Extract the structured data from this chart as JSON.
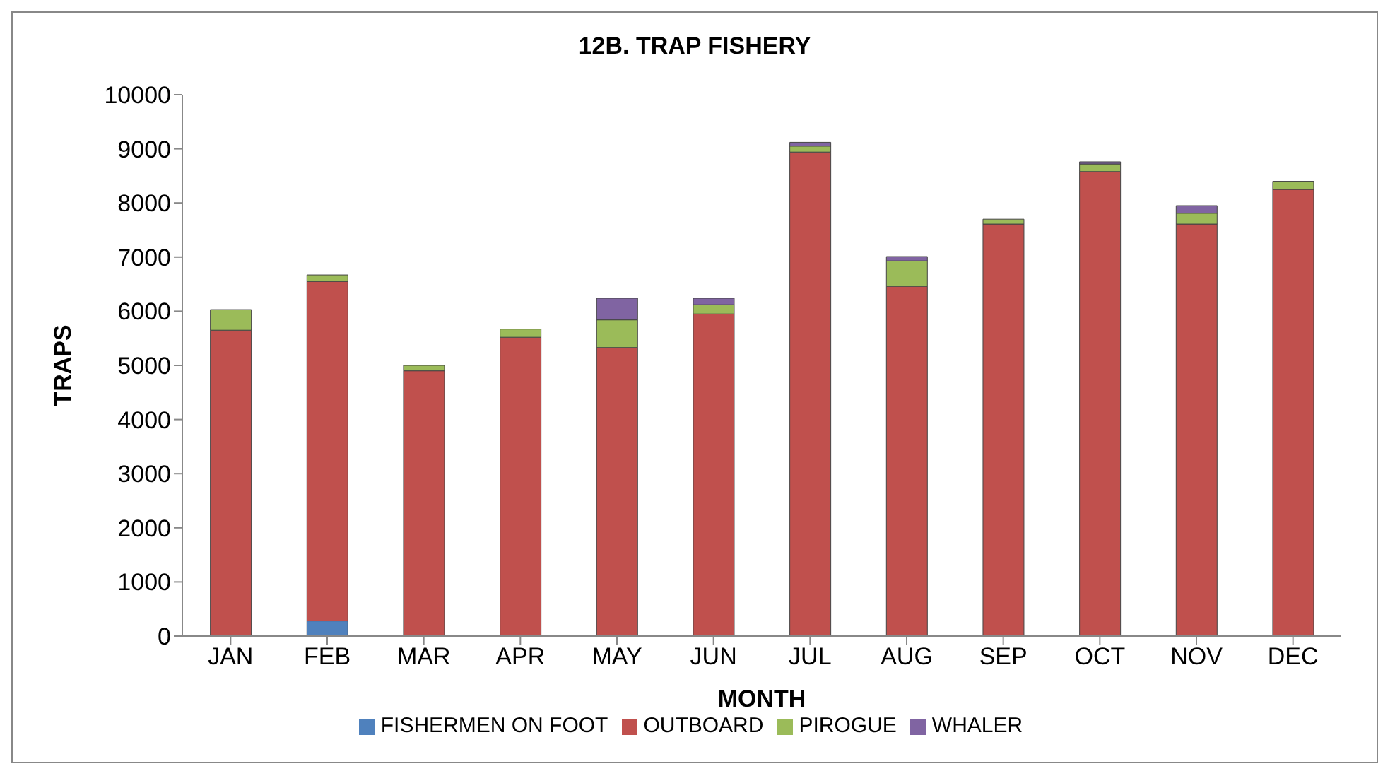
{
  "chart_data": {
    "type": "bar",
    "title": "12B. TRAP FISHERY",
    "xlabel": "MONTH",
    "ylabel": "TRAPS",
    "categories": [
      "JAN",
      "FEB",
      "MAR",
      "APR",
      "MAY",
      "JUN",
      "JUL",
      "AUG",
      "SEP",
      "OCT",
      "NOV",
      "DEC"
    ],
    "stacked": true,
    "series": [
      {
        "name": "FISHERMEN ON FOOT",
        "color": "#4f81bd",
        "values": [
          null,
          280,
          0,
          0,
          0,
          0,
          0,
          0,
          0,
          0,
          0,
          0
        ]
      },
      {
        "name": "OUTBOARD",
        "color": "#c0504d",
        "values": [
          5650,
          6270,
          4900,
          5520,
          5330,
          5950,
          8940,
          6460,
          7610,
          8580,
          7610,
          8250
        ]
      },
      {
        "name": "PIROGUE",
        "color": "#9bbb59",
        "values": [
          380,
          120,
          100,
          150,
          510,
          170,
          110,
          470,
          90,
          140,
          200,
          150
        ]
      },
      {
        "name": "WHALER",
        "color": "#8064a2",
        "values": [
          0,
          0,
          0,
          0,
          400,
          120,
          70,
          80,
          0,
          40,
          140,
          0
        ]
      }
    ],
    "ylim": [
      0,
      10000
    ],
    "yticks": [
      0,
      1000,
      2000,
      3000,
      4000,
      5000,
      6000,
      7000,
      8000,
      9000,
      10000
    ],
    "grid": false,
    "legend": "bottom"
  }
}
